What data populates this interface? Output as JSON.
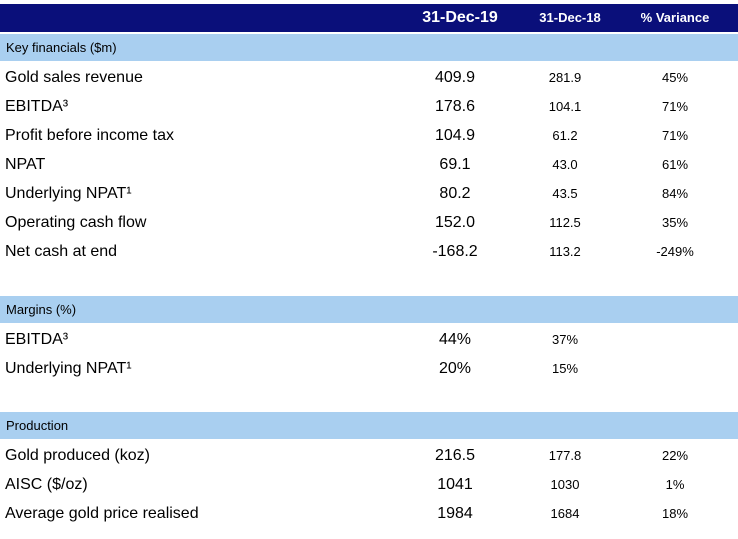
{
  "header": {
    "col1": "31-Dec-19",
    "col2": "31-Dec-18",
    "col3": "% Variance"
  },
  "sections": [
    {
      "title": "Key financials ($m)",
      "rows": [
        {
          "label": "Gold sales revenue",
          "v1": "409.9",
          "v2": "281.9",
          "v3": "45%"
        },
        {
          "label": "EBITDA³",
          "v1": "178.6",
          "v2": "104.1",
          "v3": "71%"
        },
        {
          "label": "Profit before income tax",
          "v1": "104.9",
          "v2": "61.2",
          "v3": "71%"
        },
        {
          "label": "NPAT",
          "v1": "69.1",
          "v2": "43.0",
          "v3": "61%"
        },
        {
          "label": "Underlying NPAT¹",
          "v1": "80.2",
          "v2": "43.5",
          "v3": "84%"
        },
        {
          "label": "Operating cash flow",
          "v1": "152.0",
          "v2": "112.5",
          "v3": "35%"
        },
        {
          "label": "Net cash at end",
          "v1": "-168.2",
          "v2": "113.2",
          "v3": "-249%"
        }
      ]
    },
    {
      "title": "Margins (%)",
      "rows": [
        {
          "label": "EBITDA³",
          "v1": "44%",
          "v2": "37%",
          "v3": ""
        },
        {
          "label": "Underlying NPAT¹",
          "v1": "20%",
          "v2": "15%",
          "v3": ""
        }
      ]
    },
    {
      "title": "Production",
      "rows": [
        {
          "label": "Gold produced (koz)",
          "v1": "216.5",
          "v2": "177.8",
          "v3": "22%"
        },
        {
          "label": "AISC ($/oz)",
          "v1": "1041",
          "v2": "1030",
          "v3": "1%"
        },
        {
          "label": "Average gold price realised",
          "v1": "1984",
          "v2": "1684",
          "v3": "18%"
        }
      ]
    }
  ],
  "colors": {
    "header_bg": "#0a0f7a",
    "section_bg": "#a9cff0"
  }
}
